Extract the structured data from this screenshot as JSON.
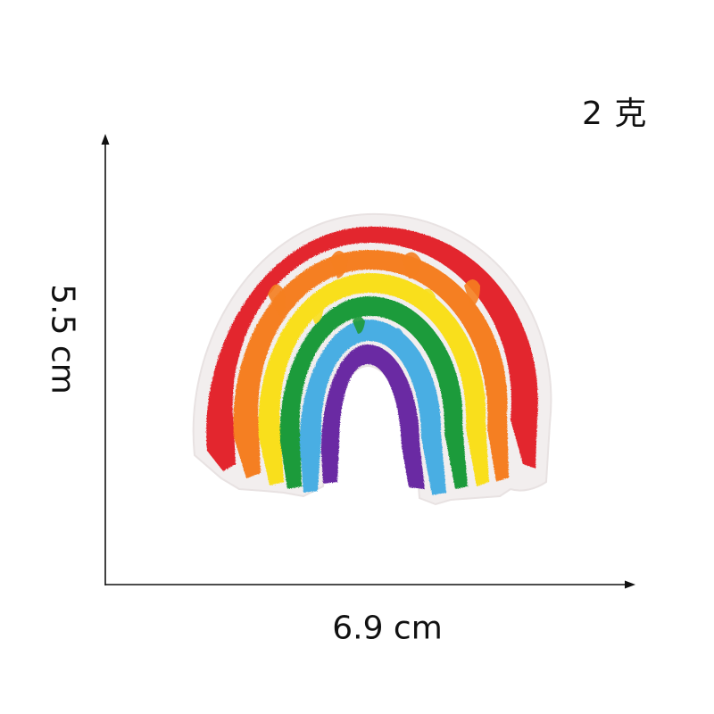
{
  "dimensions": {
    "height_text": "5.5 cm",
    "width_text": "6.9 cm",
    "weight_text": "2 克"
  },
  "product": {
    "icon": "rainbow-patch-icon",
    "stripe_colors": [
      "#e3262d",
      "#f57f20",
      "#f9df1e",
      "#1e9b3a",
      "#49aee3",
      "#6a2ba3"
    ],
    "border_color": "#f2eeee"
  }
}
